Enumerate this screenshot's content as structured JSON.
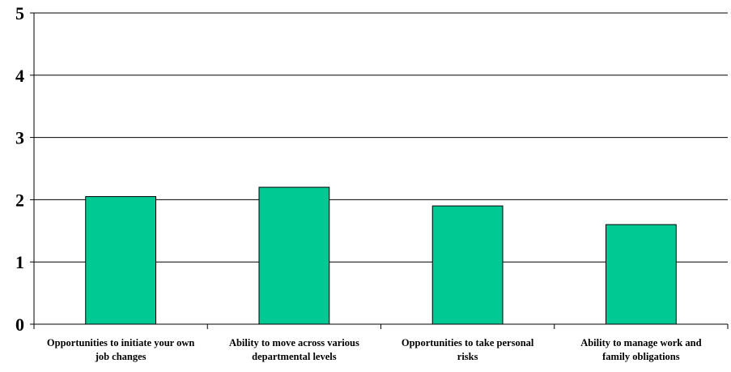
{
  "chart_data": {
    "type": "bar",
    "title": "",
    "xlabel": "",
    "ylabel": "",
    "categories": [
      [
        "Opportunities to initiate your own",
        "job changes"
      ],
      [
        "Ability to move across various",
        "departmental levels"
      ],
      [
        "Opportunities to take personal",
        "risks"
      ],
      [
        "Ability to manage work and",
        "family obligations"
      ]
    ],
    "values": [
      2.05,
      2.2,
      1.9,
      1.6
    ],
    "ylim": [
      0,
      5
    ],
    "yticks": [
      0,
      1,
      2,
      3,
      4,
      5
    ],
    "grid": true,
    "legend": "none",
    "colors": {
      "bar_fill": "#00C993",
      "bar_stroke": "#000000",
      "grid": "#000000",
      "axis": "#000000"
    }
  }
}
